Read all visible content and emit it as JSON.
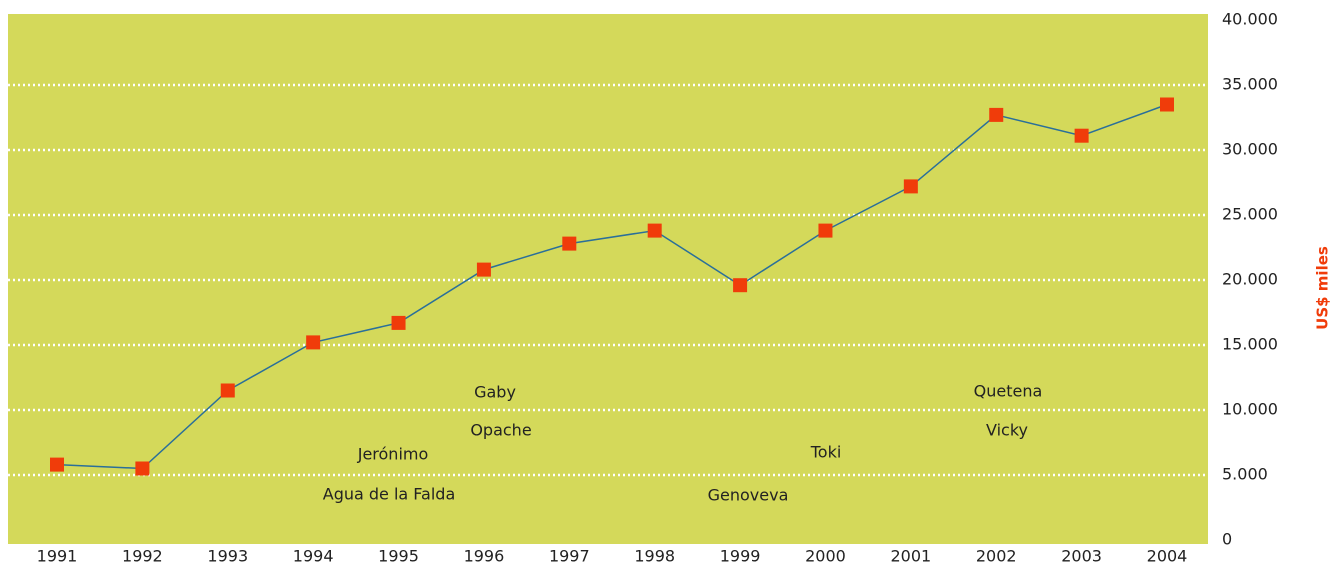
{
  "chart_data": {
    "type": "line",
    "y_label": "US$ miles",
    "categories": [
      "1991",
      "1992",
      "1993",
      "1994",
      "1995",
      "1996",
      "1997",
      "1998",
      "1999",
      "2000",
      "2001",
      "2002",
      "2003",
      "2004"
    ],
    "series": [
      {
        "color": "#f03c0a",
        "line_color": "#2a6f9a",
        "values": [
          5800,
          5500,
          11500,
          15200,
          16700,
          20800,
          22800,
          23800,
          19600,
          23800,
          27200,
          32700,
          31100,
          33500
        ]
      }
    ],
    "annotations": [
      "Gaby",
      "Opache",
      "Jerónimo",
      "Agua de la Falda",
      "Genoveva",
      "Toki",
      "Quetena",
      "Vicky"
    ],
    "ylim": [
      0,
      40000
    ],
    "yticks": [
      0,
      {
        "value": 5000,
        "label": "5.000"
      },
      {
        "value": 10000,
        "label": "10.000"
      },
      {
        "value": 15000,
        "label": "15.000"
      },
      {
        "value": 20000,
        "label": "20.000"
      },
      {
        "value": 25000,
        "label": "25.000"
      },
      {
        "value": 30000,
        "label": "30.000"
      },
      {
        "value": 35000,
        "label": "35.000"
      },
      {
        "value": 40000,
        "label": "40.000"
      }
    ],
    "background": "#d4d95a",
    "grid": true
  }
}
